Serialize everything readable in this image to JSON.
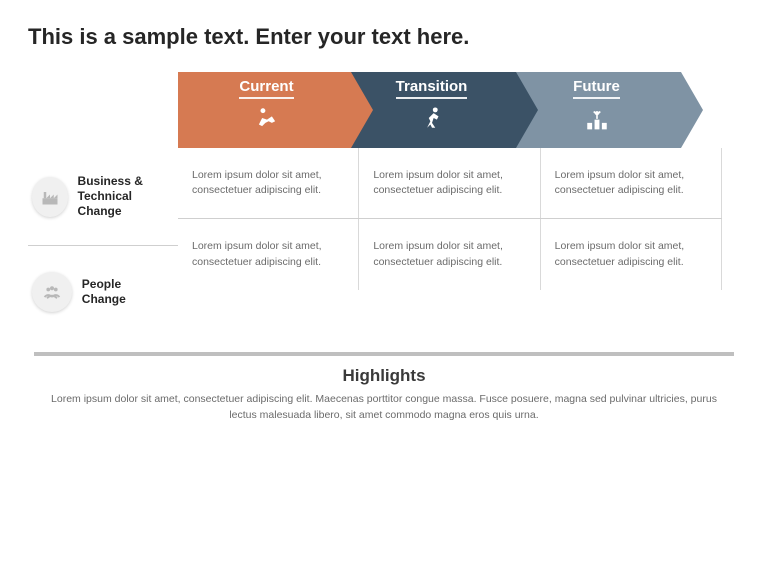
{
  "title": "This is a sample text. Enter your text here.",
  "phases": [
    {
      "label": "Current",
      "color": "#d67a52",
      "icon": "crawl"
    },
    {
      "label": "Transition",
      "color": "#3b5266",
      "icon": "run"
    },
    {
      "label": "Future",
      "color": "#7f93a4",
      "icon": "victory"
    }
  ],
  "rows": [
    {
      "icon": "factory",
      "title": "Business & Technical Change",
      "cells": [
        "Lorem ipsum dolor sit amet, consectetuer adipiscing elit.",
        "Lorem ipsum dolor sit amet, consectetuer adipiscing elit.",
        "Lorem ipsum dolor sit amet, consectetuer adipiscing elit."
      ]
    },
    {
      "icon": "people",
      "title": "People Change",
      "cells": [
        "Lorem ipsum dolor sit amet, consectetuer adipiscing elit.",
        "Lorem ipsum dolor sit amet, consectetuer adipiscing elit.",
        "Lorem ipsum dolor sit amet, consectetuer adipiscing elit."
      ]
    }
  ],
  "highlights": {
    "title": "Highlights",
    "body": "Lorem ipsum dolor sit amet, consectetuer adipiscing elit. Maecenas porttitor congue massa. Fusce posuere, magna sed pulvinar ultricies, purus lectus malesuada libero, sit amet commodo magna eros quis urna."
  },
  "style": {
    "arrow_width": 195,
    "arrow_notch": 22,
    "arrow_overlap": 8,
    "row_icon_fill": "#b8b8b8",
    "cell_font_size": 10.5,
    "title_font_size": 22
  }
}
